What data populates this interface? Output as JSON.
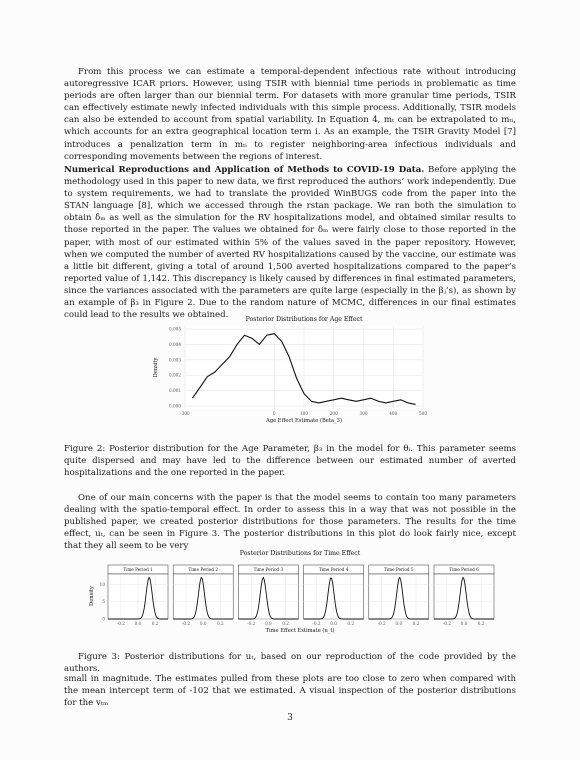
{
  "paragraphs": {
    "p1": "From this process we can estimate a temporal-dependent infectious rate without introducing autoregressive ICAR priors. However, using TSIR with biennial time periods in problematic as time periods are often larger than our biennial term. For datasets with more granular time periods, TSIR can effectively estimate newly infected individuals with this simple process. Additionally, TSIR models can also be extended to account from spatial variability. In Equation 4, mₜ can be extrapolated to mₜᵢ, which accounts for an extra geographical location term i. As an example, the TSIR Gravity Model [7] introduces a penalization term in mₜᵢ to register neighboring-area infectious individuals and corresponding movements between the regions of interest.",
    "p2_title": "Numerical Reproductions and Application of Methods to COVID-19 Data.",
    "p2_body": " Before applying the methodology used in this paper to new data, we first reproduced the authors’ work independently. Due to system requirements, we had to translate the provided WinBUGS code from the paper into the STAN language [8], which we accessed through the rstan package. We ran both the simulation to obtain δₘ as well as the simulation for the RV hospitalizations model, and obtained similar results to those reported in the paper. The values we obtained for δₘ were fairly close to those reported in the paper, with most of our estimated within 5% of the values saved in the paper repository. However, when we computed the number of averted RV hospitalizations caused by the vaccine, our estimate was a little bit different, giving a total of around 1,500 averted hospitalizations compared to the paper’s reported value of 1,142. This discrepancy is likely caused by differences in final estimated parameters, since the variances associated with the parameters are quite large (especially in the βⱼ’s), as shown by an example of β₃ in Figure 2. Due to the random nature of MCMC, differences in our final estimates could lead to the results we obtained.",
    "p3": "One of our main concerns with the paper is that the model seems to contain too many parameters dealing with the spatio-temporal effect. In order to assess this in a way that was not possible in the published paper, we created posterior distributions for those parameters. The results for the time effect, uₜ, can be seen in Figure 3. The posterior distributions in this plot do look fairly nice, except that they all seem to be very",
    "p4": "small in magnitude. The estimates pulled from these plots are too close to zero when compared with the mean intercept term of -102 that we estimated. A visual inspection of the posterior distributions for the vₜₘ"
  },
  "captions": {
    "fig2": "Figure 2: Posterior distribution for the Age Parameter, β₃ in the model for θᵢ. This parameter seems quite dispersed and may have led to the difference between our estimated number of averted hospitalizations and the one reported in the paper.",
    "fig3": "Figure 3: Posterior distributions for uₜ, based on our reproduction of the code provided by the authors."
  },
  "page_number": "3",
  "chart_data": [
    {
      "type": "line",
      "title": "Posterior Distributions for Age Effect",
      "xlabel": "Age Effect Estimate (Beta_3)",
      "ylabel": "Density",
      "xlim": [
        -300,
        500
      ],
      "ylim": [
        -0.0002,
        0.0052
      ],
      "xticks": [
        -300,
        0,
        100,
        200,
        300,
        400,
        500
      ],
      "xtick_labels": [
        "-300",
        "0",
        "100",
        "200",
        "300",
        "400",
        "500"
      ],
      "yticks": [
        0.0,
        0.001,
        0.002,
        0.003,
        0.004,
        0.005
      ],
      "ytick_labels": [
        "0.000",
        "0.001",
        "0.002",
        "0.003",
        "0.004",
        "0.005"
      ],
      "x": [
        -275,
        -250,
        -225,
        -200,
        -175,
        -150,
        -125,
        -100,
        -75,
        -50,
        -25,
        0,
        25,
        50,
        75,
        100,
        125,
        150,
        175,
        200,
        225,
        250,
        275,
        300,
        325,
        350,
        375,
        400,
        425,
        450,
        475
      ],
      "y": [
        0.0005,
        0.0012,
        0.0019,
        0.0022,
        0.0027,
        0.0032,
        0.004,
        0.0046,
        0.0044,
        0.004,
        0.0046,
        0.0047,
        0.0042,
        0.0032,
        0.0018,
        0.0008,
        0.0003,
        0.0002,
        0.0003,
        0.0004,
        0.0005,
        0.0004,
        0.0003,
        0.0004,
        0.0005,
        0.0003,
        0.0002,
        0.0003,
        0.0004,
        0.0002,
        0.0001
      ],
      "grid": true
    },
    {
      "type": "line",
      "title": "Posterior Distributions for Time Effect",
      "xlabel": "Time Effect Estimate (u_t)",
      "ylabel": "Density",
      "xlim": [
        -0.35,
        0.35
      ],
      "ylim": [
        0,
        13
      ],
      "xticks": [
        -0.2,
        0.0,
        0.2
      ],
      "xtick_labels": [
        "-0.2",
        "0.0",
        "0.2"
      ],
      "yticks": [
        0,
        5,
        10
      ],
      "ytick_labels": [
        "0",
        "5",
        "10"
      ],
      "grid": true,
      "panels": [
        {
          "label": "Time Period 1",
          "mean": 0.13,
          "sd": 0.035,
          "peak": 12
        },
        {
          "label": "Time Period 2",
          "mean": -0.02,
          "sd": 0.035,
          "peak": 12
        },
        {
          "label": "Time Period 3",
          "mean": -0.06,
          "sd": 0.035,
          "peak": 12
        },
        {
          "label": "Time Period 4",
          "mean": -0.03,
          "sd": 0.035,
          "peak": 12
        },
        {
          "label": "Time Period 5",
          "mean": 0.01,
          "sd": 0.035,
          "peak": 12
        },
        {
          "label": "Time Period 6",
          "mean": -0.01,
          "sd": 0.035,
          "peak": 12
        }
      ]
    }
  ]
}
